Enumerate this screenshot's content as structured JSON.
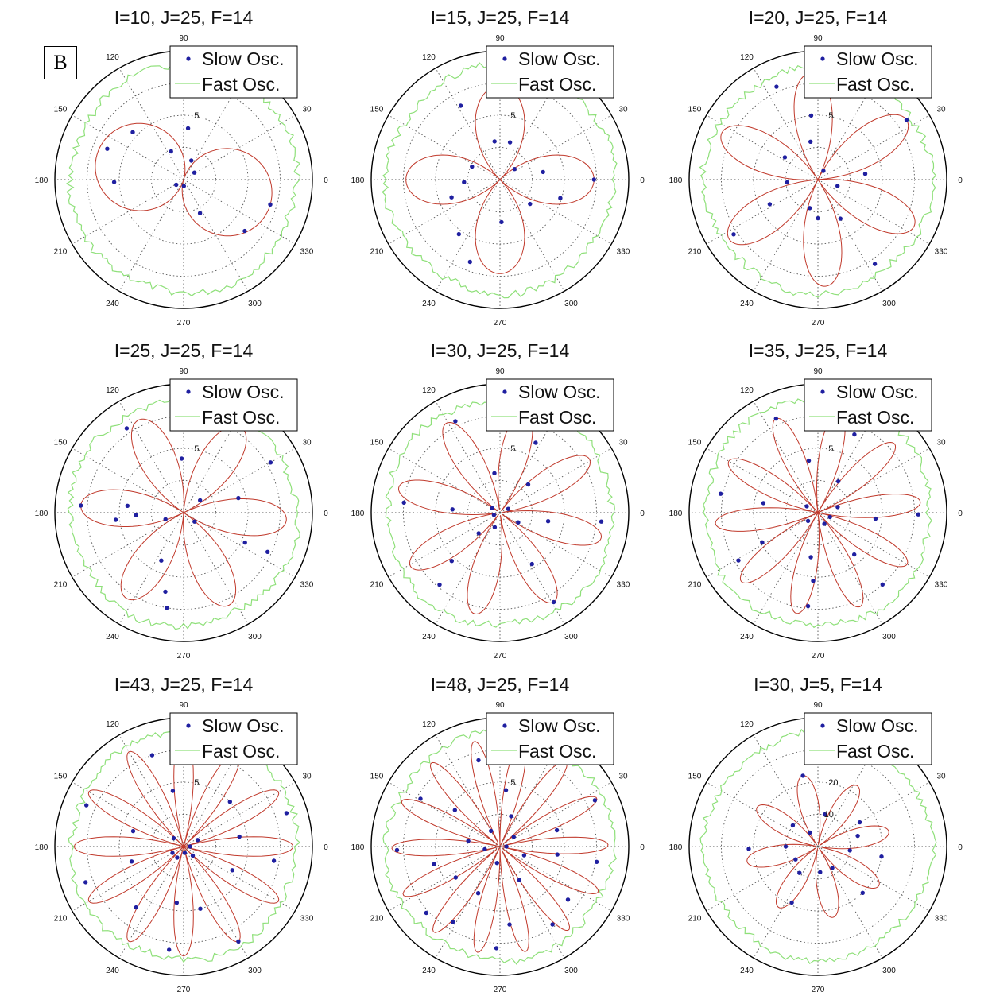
{
  "figure": {
    "panel_label": "B",
    "colors": {
      "slow": "#1f1fa0",
      "fast": "#8fe07a",
      "fit": "#c0392b",
      "axis": "#000000",
      "grid": "#555555"
    }
  },
  "chart_data": [
    {
      "type": "polar",
      "title": "I=10, J=25, F=14",
      "petals": 2,
      "rmax": 10,
      "legend": {
        "slow": "Slow Osc.",
        "fast": "Fast Osc.",
        "position": "top-right"
      },
      "ring_label": "5",
      "ring_label_value": 5,
      "angle_ticks": [
        "0",
        "30",
        "60",
        "90",
        "120",
        "150",
        "180",
        "210",
        "240",
        "270",
        "300",
        "330"
      ],
      "slow_points": [
        [
          -16,
          7.0
        ],
        [
          -40,
          6.2
        ],
        [
          -64,
          2.9
        ],
        [
          -88,
          0.5
        ],
        [
          137,
          5.4
        ],
        [
          158,
          6.4
        ],
        [
          -178,
          5.4
        ],
        [
          -145,
          0.7
        ],
        [
          33,
          1.0
        ],
        [
          68,
          1.6
        ],
        [
          85,
          4.0
        ],
        [
          114,
          2.4
        ]
      ]
    },
    {
      "type": "polar",
      "title": "I=15, J=25, F=14",
      "petals": 4,
      "rmax": 10,
      "legend": {
        "slow": "Slow Osc.",
        "fast": "Fast Osc.",
        "position": "top-right"
      },
      "ring_label": "5",
      "ring_label_value": 5,
      "angle_ticks": [
        "0",
        "30",
        "60",
        "90",
        "120",
        "150",
        "180",
        "210",
        "240",
        "270",
        "300",
        "330"
      ],
      "slow_points": [
        [
          0,
          7.3
        ],
        [
          -17,
          4.9
        ],
        [
          -39,
          3.0
        ],
        [
          -88,
          3.3
        ],
        [
          -110,
          6.8
        ],
        [
          -127,
          5.3
        ],
        [
          -160,
          4.0
        ],
        [
          -176,
          2.8
        ],
        [
          155,
          2.4
        ],
        [
          118,
          6.5
        ],
        [
          98,
          3.0
        ],
        [
          75,
          3.0
        ],
        [
          36,
          1.4
        ],
        [
          10,
          3.4
        ]
      ]
    },
    {
      "type": "polar",
      "title": "I=20, J=25, F=14",
      "petals": 6,
      "rmax": 10,
      "legend": {
        "slow": "Slow Osc.",
        "fast": "Fast Osc.",
        "position": "top-right"
      },
      "ring_label": "5",
      "ring_label_value": 5,
      "angle_ticks": [
        "0",
        "30",
        "60",
        "90",
        "120",
        "150",
        "180",
        "210",
        "240",
        "270",
        "300",
        "330"
      ],
      "slow_points": [
        [
          34,
          8.3
        ],
        [
          7,
          3.7
        ],
        [
          -18,
          1.6
        ],
        [
          -60,
          3.5
        ],
        [
          -56,
          7.9
        ],
        [
          -90,
          3.0
        ],
        [
          -106,
          2.3
        ],
        [
          -153,
          4.2
        ],
        [
          -147,
          7.8
        ],
        [
          -175,
          2.4
        ],
        [
          146,
          3.1
        ],
        [
          114,
          7.9
        ],
        [
          96,
          5.0
        ],
        [
          101,
          3.0
        ],
        [
          58,
          0.8
        ]
      ]
    },
    {
      "type": "polar",
      "title": "I=25, J=25, F=14",
      "petals": 6,
      "rmax": 10,
      "legend": {
        "slow": "Slow Osc.",
        "fast": "Fast Osc.",
        "position": "top-right"
      },
      "ring_label": "5",
      "ring_label_value": 5,
      "angle_ticks": [
        "0",
        "30",
        "60",
        "90",
        "120",
        "150",
        "180",
        "210",
        "240",
        "270",
        "300",
        "330"
      ],
      "slow_points": [
        [
          30,
          7.8
        ],
        [
          15,
          4.4
        ],
        [
          -25,
          7.2
        ],
        [
          -26,
          5.3
        ],
        [
          -39,
          1.1
        ],
        [
          -103,
          6.3
        ],
        [
          -100,
          7.5
        ],
        [
          -115,
          4.1
        ],
        [
          -174,
          5.3
        ],
        [
          -177,
          3.7
        ],
        [
          173,
          4.4
        ],
        [
          176,
          8.0
        ],
        [
          124,
          7.9
        ],
        [
          92,
          4.2
        ],
        [
          37,
          1.6
        ],
        [
          -160,
          1.5
        ]
      ]
    },
    {
      "type": "polar",
      "title": "I=30, J=25, F=14",
      "petals": 8,
      "rmax": 10,
      "legend": {
        "slow": "Slow Osc.",
        "fast": "Fast Osc.",
        "position": "top-right"
      },
      "ring_label": "5",
      "ring_label_value": 5,
      "angle_ticks": [
        "0",
        "30",
        "60",
        "90",
        "120",
        "150",
        "180",
        "210",
        "240",
        "270",
        "300",
        "330"
      ],
      "slow_points": [
        [
          -5,
          7.9
        ],
        [
          -10,
          3.8
        ],
        [
          -59,
          8.1
        ],
        [
          -58,
          4.7
        ],
        [
          -130,
          7.3
        ],
        [
          -135,
          5.3
        ],
        [
          -136,
          2.3
        ],
        [
          174,
          7.5
        ],
        [
          176,
          3.7
        ],
        [
          116,
          7.9
        ],
        [
          98,
          3.1
        ],
        [
          63,
          6.1
        ],
        [
          45,
          3.1
        ],
        [
          -28,
          1.6
        ],
        [
          -110,
          1.2
        ],
        [
          -160,
          0.5
        ],
        [
          25,
          0.7
        ],
        [
          150,
          0.7
        ]
      ]
    },
    {
      "type": "polar",
      "title": "I=35, J=25, F=14",
      "petals": 10,
      "rmax": 10,
      "legend": {
        "slow": "Slow Osc.",
        "fast": "Fast Osc.",
        "position": "top-right"
      },
      "ring_label": "5",
      "ring_label_value": 5,
      "angle_ticks": [
        "0",
        "30",
        "60",
        "90",
        "120",
        "150",
        "180",
        "210",
        "240",
        "270",
        "300",
        "330"
      ],
      "slow_points": [
        [
          -1,
          7.8
        ],
        [
          -6,
          4.5
        ],
        [
          -48,
          7.5
        ],
        [
          -49,
          4.3
        ],
        [
          -96,
          7.3
        ],
        [
          -94,
          5.3
        ],
        [
          -99,
          3.5
        ],
        [
          -149,
          7.2
        ],
        [
          -152,
          4.9
        ],
        [
          169,
          7.7
        ],
        [
          170,
          4.3
        ],
        [
          114,
          8.0
        ],
        [
          100,
          4.1
        ],
        [
          65,
          6.7
        ],
        [
          57,
          2.9
        ],
        [
          16,
          1.6
        ],
        [
          -20,
          1.0
        ],
        [
          -60,
          1.0
        ],
        [
          150,
          1.0
        ],
        [
          -140,
          1.0
        ]
      ]
    },
    {
      "type": "polar",
      "title": "I=43, J=25, F=14",
      "petals": 12,
      "rmax": 10,
      "legend": {
        "slow": "Slow Osc.",
        "fast": "Fast Osc.",
        "position": "top-right"
      },
      "ring_label": "5",
      "ring_label_value": 5,
      "angle_ticks": [
        "0",
        "30",
        "60",
        "90",
        "120",
        "150",
        "180",
        "210",
        "240",
        "270",
        "300",
        "330"
      ],
      "slow_points": [
        [
          18,
          8.4
        ],
        [
          10,
          4.4
        ],
        [
          -9,
          7.1
        ],
        [
          -26,
          4.2
        ],
        [
          -60,
          8.5
        ],
        [
          -75,
          5.0
        ],
        [
          -98,
          8.1
        ],
        [
          -97,
          4.4
        ],
        [
          -128,
          6.0
        ],
        [
          -160,
          8.1
        ],
        [
          -164,
          4.2
        ],
        [
          157,
          8.2
        ],
        [
          163,
          4.1
        ],
        [
          109,
          7.5
        ],
        [
          101,
          4.4
        ],
        [
          72,
          7.5
        ],
        [
          44,
          5.0
        ],
        [
          25,
          1.2
        ],
        [
          -45,
          1.0
        ],
        [
          -120,
          1.0
        ],
        [
          -150,
          1.0
        ],
        [
          140,
          1.0
        ],
        [
          0,
          0.5
        ],
        [
          -80,
          0.5
        ]
      ]
    },
    {
      "type": "polar",
      "title": "I=48, J=25, F=14",
      "petals": 14,
      "rmax": 10,
      "legend": {
        "slow": "Slow Osc.",
        "fast": "Fast Osc.",
        "position": "top-right"
      },
      "ring_label": "5",
      "ring_label_value": 5,
      "angle_ticks": [
        "0",
        "30",
        "60",
        "90",
        "120",
        "150",
        "180",
        "210",
        "240",
        "270",
        "300",
        "330"
      ],
      "slow_points": [
        [
          26,
          8.2
        ],
        [
          16,
          4.6
        ],
        [
          -9,
          7.6
        ],
        [
          -8,
          4.5
        ],
        [
          -38,
          6.7
        ],
        [
          -56,
          7.3
        ],
        [
          -83,
          6.1
        ],
        [
          -92,
          7.9
        ],
        [
          -122,
          6.9
        ],
        [
          -138,
          7.7
        ],
        [
          -165,
          5.3
        ],
        [
          -178,
          8.0
        ],
        [
          149,
          7.2
        ],
        [
          141,
          4.5
        ],
        [
          104,
          6.9
        ],
        [
          84,
          4.4
        ],
        [
          78,
          8.4
        ],
        [
          -115,
          4.0
        ],
        [
          -145,
          4.2
        ],
        [
          170,
          2.5
        ],
        [
          70,
          2.5
        ],
        [
          -60,
          3.0
        ],
        [
          -20,
          2.0
        ],
        [
          120,
          1.4
        ],
        [
          35,
          1.3
        ],
        [
          -170,
          1.2
        ],
        [
          -100,
          1.3
        ],
        [
          0,
          0.5
        ]
      ]
    },
    {
      "type": "polar",
      "title": "I=30, J=5, F=14",
      "petals": 8,
      "rmax": 40,
      "legend": {
        "slow": "Slow Osc.",
        "fast": "Fast Osc.",
        "position": "top-right"
      },
      "ring_label": "20",
      "ring_label_value": 20,
      "ring_label_2": "10",
      "ring_label_2_value": 10,
      "angle_ticks": [
        "0",
        "30",
        "60",
        "90",
        "120",
        "150",
        "180",
        "210",
        "240",
        "270",
        "300",
        "330"
      ],
      "slow_points": [
        [
          -9,
          20.0
        ],
        [
          -7,
          10.0
        ],
        [
          -46,
          20.0
        ],
        [
          -56,
          8.0
        ],
        [
          -115,
          19.2
        ],
        [
          -125,
          10.0
        ],
        [
          -178,
          21.5
        ],
        [
          -150,
          8.0
        ],
        [
          102,
          22.5
        ],
        [
          78,
          10.2
        ],
        [
          30,
          15.0
        ],
        [
          15,
          12.8
        ],
        [
          140,
          10.2
        ],
        [
          -180,
          10.0
        ],
        [
          -85,
          8.0
        ],
        [
          120,
          5.0
        ]
      ]
    }
  ]
}
